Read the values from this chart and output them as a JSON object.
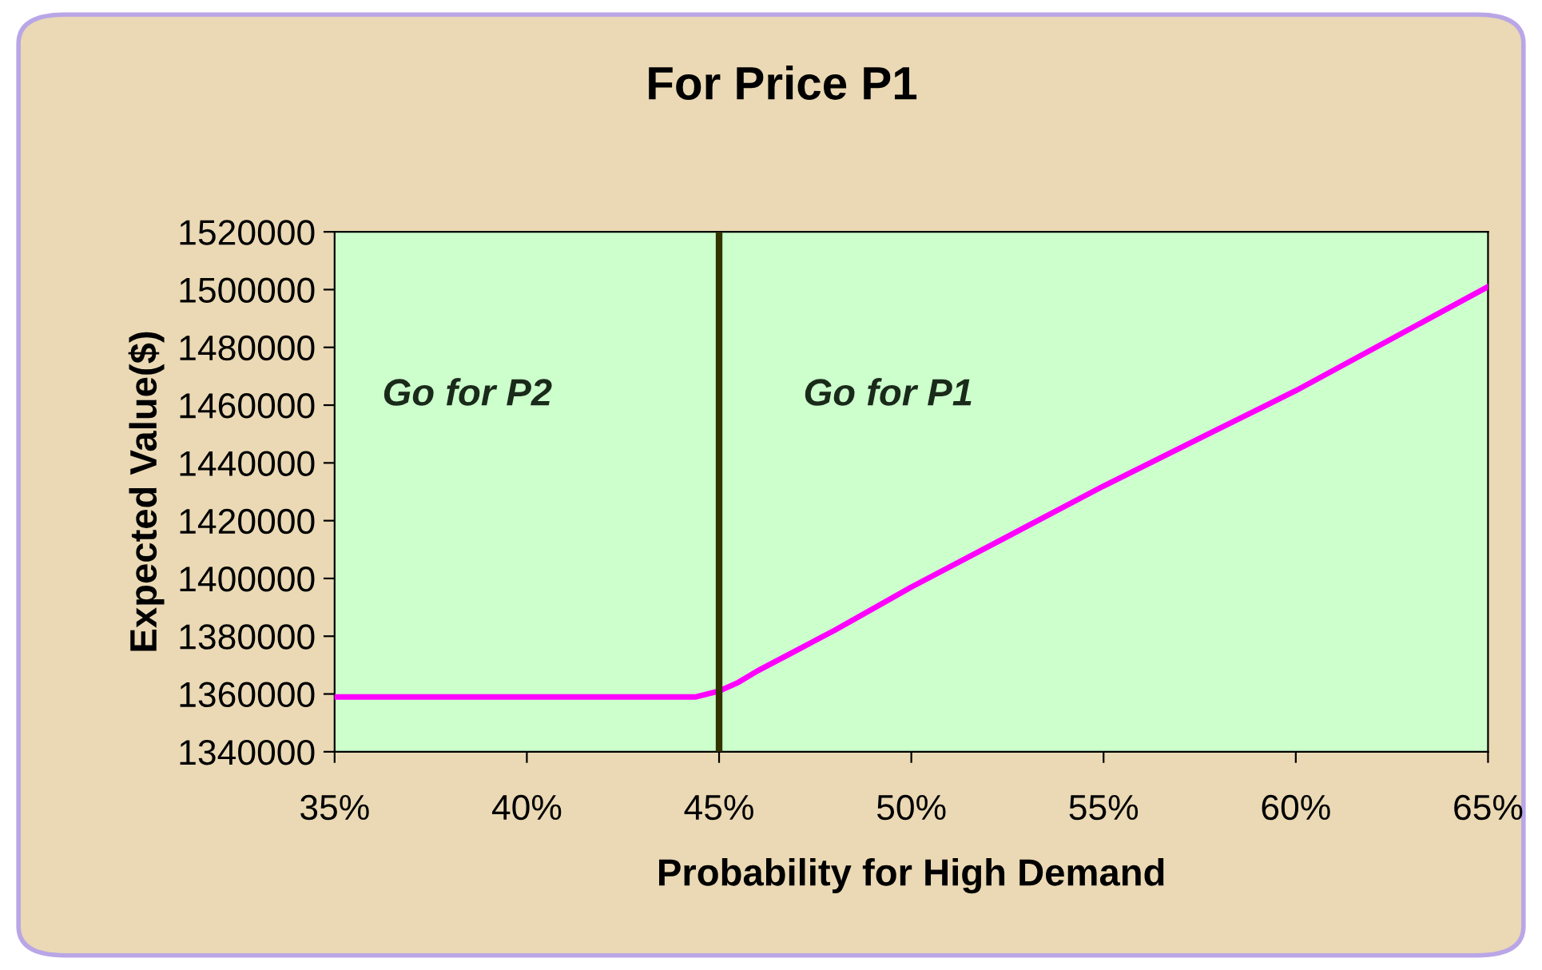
{
  "chart_data": {
    "type": "line",
    "title": "For Price P1",
    "xlabel": "Probability for High Demand",
    "ylabel": "Expected Value($)",
    "series": [
      {
        "color": "#ff00ff",
        "x": [
          35,
          44.4,
          45,
          45.5,
          46,
          47,
          48,
          50,
          55,
          60,
          65
        ],
        "values": [
          1359000,
          1359000,
          1361000,
          1364000,
          1368000,
          1375000,
          1382000,
          1397000,
          1432000,
          1465000,
          1501000
        ]
      }
    ],
    "xlim": [
      35,
      65
    ],
    "ylim": [
      1340000,
      1520000
    ],
    "xticks": [
      {
        "value": 35,
        "label": "35%"
      },
      {
        "value": 40,
        "label": "40%"
      },
      {
        "value": 45,
        "label": "45%"
      },
      {
        "value": 50,
        "label": "50%"
      },
      {
        "value": 55,
        "label": "55%"
      },
      {
        "value": 60,
        "label": "60%"
      },
      {
        "value": 65,
        "label": "65%"
      }
    ],
    "yticks": [
      1340000,
      1360000,
      1380000,
      1400000,
      1420000,
      1440000,
      1460000,
      1480000,
      1500000,
      1520000
    ],
    "ref_lines": [
      {
        "axis": "x",
        "value": 45,
        "color": "#333300"
      }
    ],
    "annotations": [
      "Go for P2",
      "Go for P1"
    ],
    "grid": false,
    "legend": false,
    "marker": "none",
    "line_style": "solid"
  }
}
